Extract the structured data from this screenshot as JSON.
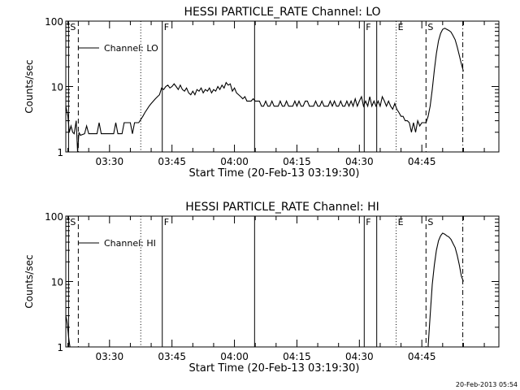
{
  "chart_data": [
    {
      "type": "line",
      "title": "HESSI PARTICLE_RATE Channel: LO",
      "xlabel": "Start Time (20-Feb-13 03:19:30)",
      "ylabel": "Counts/sec",
      "y_scale": "log",
      "ylim": [
        1,
        100
      ],
      "xlim": [
        "03:19:30",
        "05:03:30"
      ],
      "x_ticks": [
        "03:30",
        "03:45",
        "04:00",
        "04:15",
        "04:30",
        "04:45"
      ],
      "y_ticks": [
        "1",
        "10",
        "100"
      ],
      "legend": {
        "entries": [
          "Channel: LO"
        ],
        "position": "top-left"
      },
      "markers": [
        {
          "label": "S",
          "time": "03:20:10",
          "style": "solid"
        },
        {
          "label": "",
          "time": "03:22:30",
          "style": "dashed"
        },
        {
          "label": "",
          "time": "03:37:30",
          "style": "dotted"
        },
        {
          "label": "F",
          "time": "03:42:40",
          "style": "solid"
        },
        {
          "label": "",
          "time": "04:04:50",
          "style": "solid"
        },
        {
          "label": "F",
          "time": "04:31:10",
          "style": "solid"
        },
        {
          "label": "",
          "time": "04:34:10",
          "style": "solid"
        },
        {
          "label": "E",
          "time": "04:38:50",
          "style": "dotted"
        },
        {
          "label": "S",
          "time": "04:46:00",
          "style": "dashed"
        },
        {
          "label": "",
          "time": "04:54:50",
          "style": "dashdot"
        }
      ],
      "series": [
        {
          "name": "Channel: LO",
          "segments": [
            [
              [
                "03:19:30",
                5.0
              ],
              [
                "03:20:00",
                3.5
              ],
              [
                "03:20:20",
                2.0
              ],
              [
                "03:20:45",
                2.5
              ],
              [
                "03:21:10",
                2.0
              ],
              [
                "03:21:30",
                1.9
              ],
              [
                "03:22:00",
                3.0
              ],
              [
                "03:22:20",
                1.0
              ],
              [
                "03:22:40",
                2.0
              ],
              [
                "03:23:00",
                1.8
              ],
              [
                "03:24:00",
                1.9
              ],
              [
                "03:24:30",
                2.5
              ],
              [
                "03:25:00",
                1.9
              ],
              [
                "03:27:00",
                1.9
              ],
              [
                "03:27:30",
                2.8
              ],
              [
                "03:28:00",
                1.9
              ],
              [
                "03:30:00",
                1.9
              ],
              [
                "03:31:00",
                1.9
              ],
              [
                "03:31:30",
                2.8
              ],
              [
                "03:32:00",
                1.9
              ],
              [
                "03:33:00",
                1.9
              ],
              [
                "03:33:30",
                2.8
              ],
              [
                "03:34:00",
                2.8
              ],
              [
                "03:35:00",
                2.8
              ],
              [
                "03:35:30",
                1.9
              ],
              [
                "03:36:00",
                2.8
              ],
              [
                "03:37:00",
                2.8
              ],
              [
                "03:38:00",
                3.5
              ],
              [
                "03:38:30",
                4.0
              ],
              [
                "03:39:30",
                5.0
              ],
              [
                "03:40:00",
                5.5
              ],
              [
                "03:41:00",
                6.5
              ],
              [
                "03:41:30",
                7.0
              ],
              [
                "03:42:00",
                7.5
              ],
              [
                "03:42:30",
                9.5
              ],
              [
                "03:43:00",
                9.0
              ],
              [
                "03:43:30",
                10.0
              ],
              [
                "03:44:00",
                10.5
              ],
              [
                "03:44:30",
                9.5
              ],
              [
                "03:45:00",
                10.0
              ],
              [
                "03:45:30",
                11.0
              ],
              [
                "03:46:00",
                10.0
              ],
              [
                "03:46:30",
                9.0
              ],
              [
                "03:47:00",
                10.5
              ],
              [
                "03:47:30",
                9.0
              ],
              [
                "03:48:00",
                8.5
              ],
              [
                "03:48:30",
                9.5
              ],
              [
                "03:49:00",
                8.0
              ],
              [
                "03:49:30",
                7.5
              ],
              [
                "03:50:00",
                8.5
              ],
              [
                "03:50:30",
                7.5
              ],
              [
                "03:51:00",
                9.0
              ],
              [
                "03:51:30",
                8.5
              ],
              [
                "03:52:00",
                9.5
              ],
              [
                "03:52:30",
                8.0
              ],
              [
                "03:53:00",
                9.0
              ],
              [
                "03:53:30",
                8.5
              ],
              [
                "03:54:00",
                9.5
              ],
              [
                "03:54:30",
                8.0
              ],
              [
                "03:55:00",
                9.0
              ],
              [
                "03:55:30",
                8.5
              ],
              [
                "03:56:00",
                10.0
              ],
              [
                "03:56:30",
                9.0
              ],
              [
                "03:57:00",
                10.5
              ],
              [
                "03:57:30",
                9.5
              ],
              [
                "03:58:00",
                11.5
              ],
              [
                "03:58:30",
                10.5
              ],
              [
                "03:59:00",
                11.0
              ],
              [
                "03:59:30",
                8.5
              ],
              [
                "04:00:00",
                9.5
              ],
              [
                "04:00:30",
                8.0
              ],
              [
                "04:01:00",
                7.5
              ],
              [
                "04:01:30",
                7.0
              ],
              [
                "04:02:00",
                6.5
              ],
              [
                "04:02:30",
                7.0
              ],
              [
                "04:03:00",
                6.0
              ],
              [
                "04:04:00",
                6.0
              ],
              [
                "04:04:30",
                6.5
              ],
              [
                "04:05:00",
                6.0
              ],
              [
                "04:06:00",
                6.0
              ],
              [
                "04:06:30",
                5.0
              ],
              [
                "04:07:00",
                5.0
              ],
              [
                "04:07:30",
                6.0
              ],
              [
                "04:08:00",
                5.0
              ],
              [
                "04:08:30",
                5.0
              ],
              [
                "04:09:00",
                6.0
              ],
              [
                "04:09:30",
                5.0
              ],
              [
                "04:10:00",
                5.0
              ],
              [
                "04:10:30",
                5.0
              ],
              [
                "04:11:00",
                6.0
              ],
              [
                "04:11:30",
                5.0
              ],
              [
                "04:12:00",
                5.0
              ],
              [
                "04:12:30",
                6.0
              ],
              [
                "04:13:00",
                5.0
              ],
              [
                "04:13:30",
                5.0
              ],
              [
                "04:14:00",
                5.0
              ],
              [
                "04:14:30",
                6.0
              ],
              [
                "04:15:00",
                5.0
              ],
              [
                "04:15:30",
                6.0
              ],
              [
                "04:16:00",
                5.0
              ],
              [
                "04:16:30",
                5.0
              ],
              [
                "04:17:00",
                6.0
              ],
              [
                "04:17:30",
                6.0
              ],
              [
                "04:18:00",
                5.0
              ],
              [
                "04:18:30",
                5.0
              ],
              [
                "04:19:00",
                5.0
              ],
              [
                "04:19:30",
                6.0
              ],
              [
                "04:20:00",
                5.0
              ],
              [
                "04:20:30",
                5.0
              ],
              [
                "04:21:00",
                6.0
              ],
              [
                "04:21:30",
                5.0
              ],
              [
                "04:22:00",
                5.0
              ],
              [
                "04:22:30",
                5.0
              ],
              [
                "04:23:00",
                6.0
              ],
              [
                "04:23:30",
                5.0
              ],
              [
                "04:24:00",
                6.0
              ],
              [
                "04:24:30",
                5.0
              ],
              [
                "04:25:00",
                5.0
              ],
              [
                "04:25:30",
                6.0
              ],
              [
                "04:26:00",
                5.0
              ],
              [
                "04:26:30",
                5.0
              ],
              [
                "04:27:00",
                6.0
              ],
              [
                "04:27:30",
                5.0
              ],
              [
                "04:28:00",
                6.0
              ],
              [
                "04:28:30",
                5.0
              ],
              [
                "04:29:00",
                6.5
              ],
              [
                "04:29:30",
                5.0
              ],
              [
                "04:30:00",
                6.0
              ],
              [
                "04:30:30",
                7.0
              ],
              [
                "04:31:00",
                5.0
              ],
              [
                "04:31:30",
                6.0
              ],
              [
                "04:32:00",
                5.0
              ],
              [
                "04:32:30",
                7.0
              ],
              [
                "04:33:00",
                5.0
              ],
              [
                "04:33:30",
                6.0
              ],
              [
                "04:34:00",
                5.0
              ],
              [
                "04:34:30",
                6.0
              ],
              [
                "04:35:00",
                5.0
              ],
              [
                "04:35:30",
                7.0
              ],
              [
                "04:36:00",
                6.0
              ],
              [
                "04:36:30",
                5.0
              ],
              [
                "04:37:00",
                6.0
              ],
              [
                "04:37:30",
                5.0
              ],
              [
                "04:38:00",
                4.5
              ],
              [
                "04:38:30",
                5.5
              ],
              [
                "04:39:00",
                4.5
              ],
              [
                "04:39:30",
                4.0
              ],
              [
                "04:40:00",
                3.5
              ],
              [
                "04:40:30",
                3.5
              ],
              [
                "04:41:00",
                3.0
              ],
              [
                "04:41:30",
                3.0
              ],
              [
                "04:42:00",
                2.8
              ],
              [
                "04:42:30",
                2.0
              ],
              [
                "04:43:00",
                2.8
              ],
              [
                "04:43:30",
                2.0
              ],
              [
                "04:44:00",
                3.0
              ],
              [
                "04:44:30",
                2.5
              ],
              [
                "04:45:00",
                2.8
              ],
              [
                "04:46:00",
                2.8
              ],
              [
                "04:46:30",
                3.5
              ],
              [
                "04:47:00",
                5.0
              ],
              [
                "04:47:30",
                9.0
              ],
              [
                "04:48:00",
                18.0
              ],
              [
                "04:48:30",
                32.0
              ],
              [
                "04:49:00",
                50.0
              ],
              [
                "04:49:30",
                65.0
              ],
              [
                "04:50:00",
                75.0
              ],
              [
                "04:50:30",
                78.0
              ],
              [
                "04:51:00",
                75.0
              ],
              [
                "04:51:30",
                72.0
              ],
              [
                "04:52:00",
                68.0
              ],
              [
                "04:52:30",
                60.0
              ],
              [
                "04:53:00",
                52.0
              ],
              [
                "04:53:30",
                40.0
              ],
              [
                "04:54:00",
                30.0
              ],
              [
                "04:54:30",
                22.0
              ],
              [
                "04:55:00",
                17.0
              ]
            ]
          ]
        }
      ]
    },
    {
      "type": "line",
      "title": "HESSI PARTICLE_RATE Channel: HI",
      "xlabel": "Start Time (20-Feb-13 03:19:30)",
      "ylabel": "Counts/sec",
      "y_scale": "log",
      "ylim": [
        1,
        100
      ],
      "xlim": [
        "03:19:30",
        "05:03:30"
      ],
      "x_ticks": [
        "03:30",
        "03:45",
        "04:00",
        "04:15",
        "04:30",
        "04:45"
      ],
      "y_ticks": [
        "1",
        "10",
        "100"
      ],
      "legend": {
        "entries": [
          "Channel: HI"
        ],
        "position": "top-left"
      },
      "markers": [
        {
          "label": "S",
          "time": "03:20:10",
          "style": "solid"
        },
        {
          "label": "",
          "time": "03:22:30",
          "style": "dashed"
        },
        {
          "label": "",
          "time": "03:37:30",
          "style": "dotted"
        },
        {
          "label": "F",
          "time": "03:42:40",
          "style": "solid"
        },
        {
          "label": "",
          "time": "04:04:50",
          "style": "solid"
        },
        {
          "label": "F",
          "time": "04:31:10",
          "style": "solid"
        },
        {
          "label": "",
          "time": "04:34:10",
          "style": "solid"
        },
        {
          "label": "E",
          "time": "04:38:50",
          "style": "dotted"
        },
        {
          "label": "S",
          "time": "04:46:00",
          "style": "dashed"
        },
        {
          "label": "",
          "time": "04:54:50",
          "style": "dashdot"
        }
      ],
      "series": [
        {
          "name": "Channel: HI",
          "segments": [
            [
              [
                "03:19:30",
                3.0
              ],
              [
                "03:19:45",
                2.5
              ],
              [
                "03:20:00",
                1.8
              ],
              [
                "03:20:15",
                1.3
              ],
              [
                "03:20:30",
                1.0
              ]
            ],
            [
              [
                "04:46:30",
                1.0
              ],
              [
                "04:47:00",
                3.0
              ],
              [
                "04:47:30",
                9.0
              ],
              [
                "04:48:00",
                18.0
              ],
              [
                "04:48:30",
                30.0
              ],
              [
                "04:49:00",
                42.0
              ],
              [
                "04:49:30",
                50.0
              ],
              [
                "04:50:00",
                55.0
              ],
              [
                "04:50:30",
                53.0
              ],
              [
                "04:51:00",
                50.0
              ],
              [
                "04:51:30",
                48.0
              ],
              [
                "04:52:00",
                44.0
              ],
              [
                "04:52:30",
                38.0
              ],
              [
                "04:53:00",
                33.0
              ],
              [
                "04:53:30",
                25.0
              ],
              [
                "04:54:00",
                18.0
              ],
              [
                "04:54:30",
                12.0
              ],
              [
                "04:55:00",
                10.0
              ]
            ]
          ]
        }
      ]
    }
  ],
  "footer": {
    "timestamp": "20-Feb-2013 05:54"
  }
}
